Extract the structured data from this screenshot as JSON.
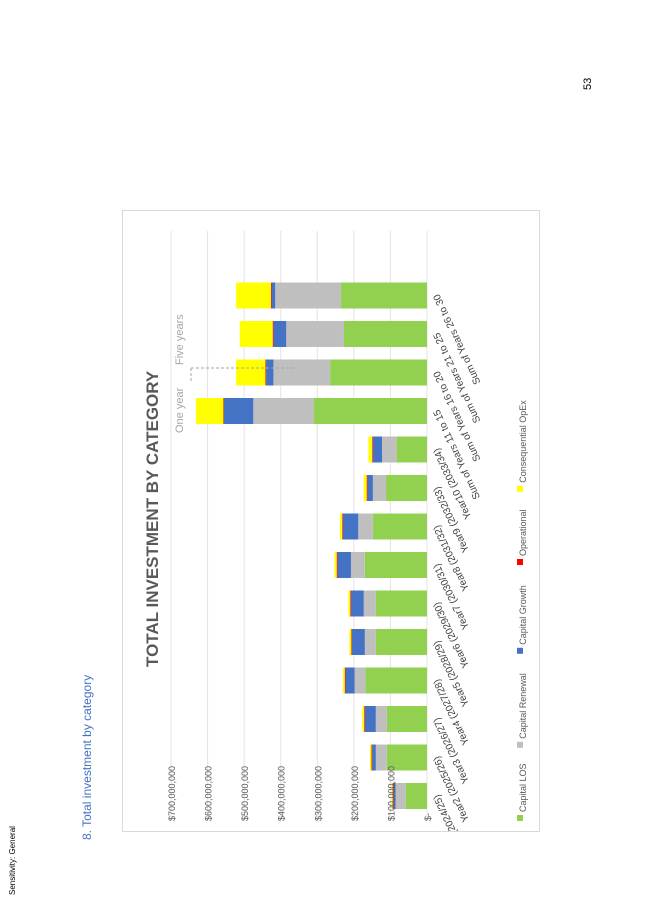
{
  "page": {
    "sensitivity": "Sensitivity: General",
    "heading": "8.   Total investment by category",
    "page_number": "53"
  },
  "chart_data": {
    "type": "bar",
    "stacked": true,
    "orientation": "horizontal",
    "title": "TOTAL INVESTMENT BY CATEGORY",
    "xlabel": "",
    "ylabel": "",
    "ylim": [
      0,
      700000000
    ],
    "y_ticks": [
      "$-",
      "$100,000,000",
      "$200,000,000",
      "$300,000,000",
      "$400,000,000",
      "$500,000,000",
      "$600,000,000",
      "$700,000,000"
    ],
    "grid": true,
    "legend_position": "bottom",
    "annotations": {
      "one_year": "One year",
      "five_years": "Five years"
    },
    "categories": [
      "Year1 (2024/25)",
      "Year2 (2025/26)",
      "Year3 (2026/27)",
      "Year4 (2027/28)",
      "Year5 (2028/29)",
      "Year6 (2029/30)",
      "Year7 (2030/31)",
      "Year8 (2031/32)",
      "Year9 (2032/33)",
      "Year10 (2033/34)",
      "Sum of Years 11 to 15",
      "Sum of Years 16 to 20",
      "Sum of Years 21 to 25",
      "Sum of Years 26 to 30"
    ],
    "series": [
      {
        "name": "Capital LOS",
        "color": "#92d050",
        "values": [
          58000000,
          110000000,
          110000000,
          168000000,
          140000000,
          140000000,
          170000000,
          148000000,
          112000000,
          83000000,
          310000000,
          265000000,
          227000000,
          235000000
        ]
      },
      {
        "name": "Capital Renewal",
        "color": "#bfbfbf",
        "values": [
          28000000,
          30000000,
          30000000,
          30000000,
          30000000,
          33000000,
          38000000,
          40000000,
          36000000,
          40000000,
          165000000,
          155000000,
          158000000,
          180000000
        ]
      },
      {
        "name": "Capital Growth",
        "color": "#4472c4",
        "values": [
          6000000,
          10000000,
          30000000,
          25000000,
          35000000,
          35000000,
          37000000,
          42000000,
          15000000,
          25000000,
          80000000,
          20000000,
          35000000,
          10000000
        ]
      },
      {
        "name": "Operational",
        "color": "#ff0000",
        "values": [
          2000000,
          2000000,
          2000000,
          2000000,
          2000000,
          2000000,
          2000000,
          2000000,
          2000000,
          2000000,
          2000000,
          2000000,
          2000000,
          2000000
        ]
      },
      {
        "name": "Consequential OpEx",
        "color": "#ffff00",
        "values": [
          3000000,
          4000000,
          5000000,
          5000000,
          5000000,
          5000000,
          6000000,
          6000000,
          8000000,
          10000000,
          75000000,
          80000000,
          90000000,
          95000000
        ]
      }
    ]
  }
}
